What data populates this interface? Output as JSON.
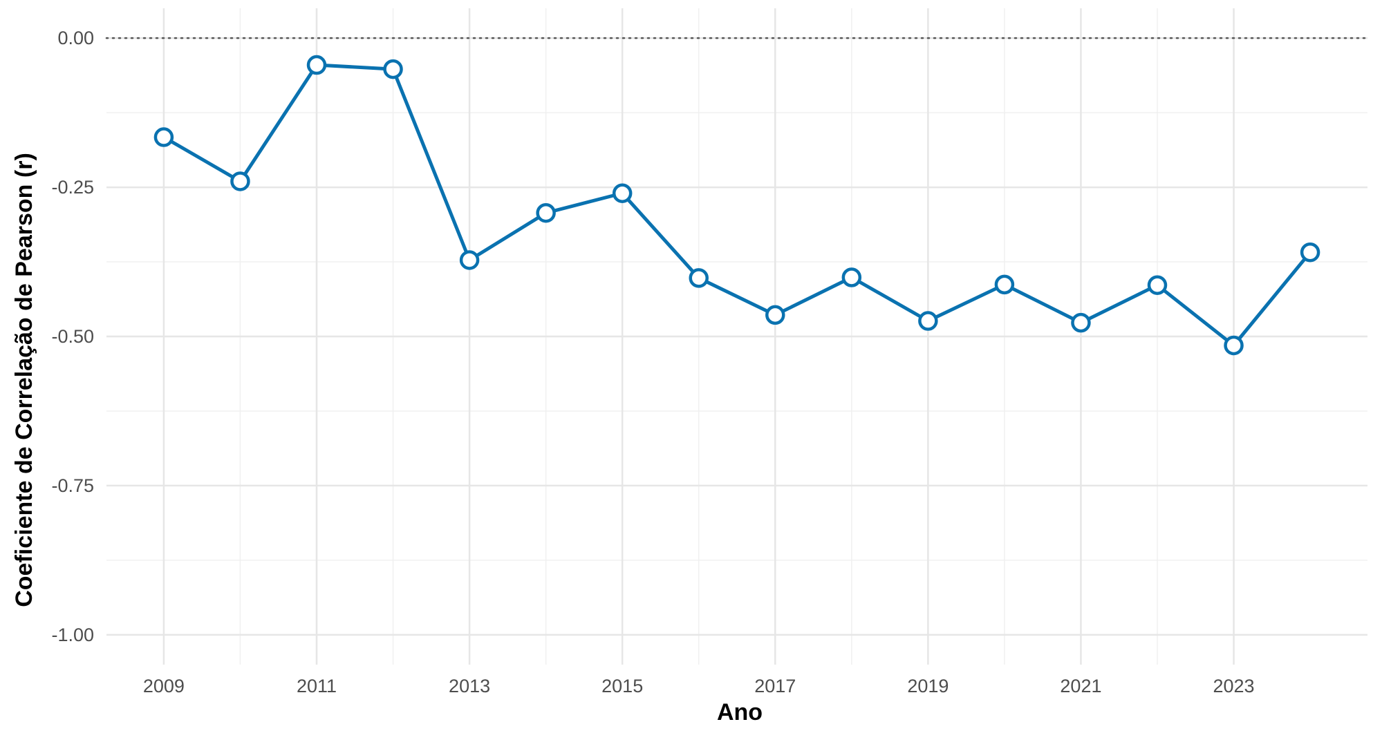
{
  "chart_data": {
    "type": "line",
    "xlabel": "Ano",
    "ylabel": "Coeficiente de Correlação de Pearson (r)",
    "xlim": [
      2008.25,
      2024.75
    ],
    "ylim": [
      -1.05,
      0.05
    ],
    "x_ticks": [
      {
        "value": 2009,
        "label": "2009"
      },
      {
        "value": 2011,
        "label": "2011"
      },
      {
        "value": 2013,
        "label": "2013"
      },
      {
        "value": 2015,
        "label": "2015"
      },
      {
        "value": 2017,
        "label": "2017"
      },
      {
        "value": 2019,
        "label": "2019"
      },
      {
        "value": 2021,
        "label": "2021"
      },
      {
        "value": 2023,
        "label": "2023"
      }
    ],
    "y_ticks": [
      {
        "value": 0.0,
        "label": "0.00"
      },
      {
        "value": -0.25,
        "label": "-0.25"
      },
      {
        "value": -0.5,
        "label": "-0.50"
      },
      {
        "value": -0.75,
        "label": "-0.75"
      },
      {
        "value": -1.0,
        "label": "-1.00"
      }
    ],
    "reference_line": {
      "y": 0,
      "style": "dotted"
    },
    "grid": true,
    "series": [
      {
        "color": "#0a72b0",
        "x": [
          2009,
          2010,
          2011,
          2012,
          2013,
          2014,
          2015,
          2016,
          2017,
          2018,
          2019,
          2020,
          2021,
          2022,
          2023,
          2024
        ],
        "y": [
          -0.166,
          -0.24,
          -0.045,
          -0.052,
          -0.372,
          -0.293,
          -0.26,
          -0.402,
          -0.464,
          -0.401,
          -0.474,
          -0.413,
          -0.477,
          -0.414,
          -0.515,
          -0.359
        ]
      }
    ]
  }
}
